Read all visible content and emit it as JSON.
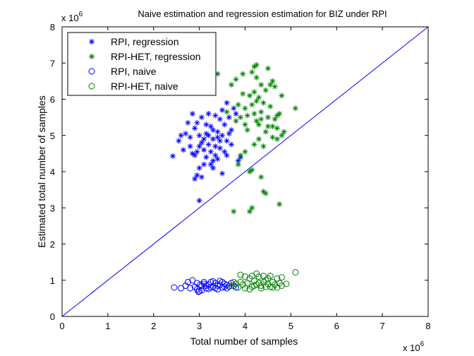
{
  "chart_data": {
    "type": "scatter",
    "title": "Naive estimation and regression estimation for BIZ under RPI",
    "xlabel": "Total number of samples",
    "ylabel": "Estimated total number of samples",
    "x_exponent_base": "x 10",
    "x_exponent_power": "6",
    "y_exponent_base": "x 10",
    "y_exponent_power": "6",
    "xlim": [
      0,
      8
    ],
    "ylim": [
      0,
      8
    ],
    "xticks": [
      "0",
      "1",
      "2",
      "3",
      "4",
      "5",
      "6",
      "7",
      "8"
    ],
    "yticks": [
      "0",
      "1",
      "2",
      "3",
      "4",
      "5",
      "6",
      "7",
      "8"
    ],
    "legend_position": "top-left",
    "reference_line": {
      "from": [
        0,
        0
      ],
      "to": [
        8,
        8
      ],
      "color": "#0000ff"
    },
    "series": [
      {
        "name": "RPI, regression",
        "marker": "asterisk",
        "color": "#0000ff",
        "points": [
          [
            2.42,
            4.43
          ],
          [
            2.55,
            4.85
          ],
          [
            2.6,
            5.0
          ],
          [
            2.7,
            5.05
          ],
          [
            2.75,
            5.35
          ],
          [
            2.8,
            4.95
          ],
          [
            2.85,
            5.6
          ],
          [
            2.9,
            5.2
          ],
          [
            2.95,
            4.55
          ],
          [
            3.0,
            5.0
          ],
          [
            3.05,
            4.8
          ],
          [
            3.1,
            4.6
          ],
          [
            3.15,
            5.05
          ],
          [
            3.2,
            4.75
          ],
          [
            3.25,
            5.25
          ],
          [
            3.3,
            4.9
          ],
          [
            3.35,
            4.45
          ],
          [
            3.4,
            5.1
          ],
          [
            3.45,
            4.65
          ],
          [
            3.5,
            5.0
          ],
          [
            3.55,
            5.3
          ],
          [
            3.6,
            4.85
          ],
          [
            3.65,
            5.5
          ],
          [
            3.7,
            5.15
          ],
          [
            3.75,
            5.75
          ],
          [
            3.8,
            5.6
          ],
          [
            3.85,
            4.3
          ],
          [
            3.6,
            5.9
          ],
          [
            3.2,
            5.6
          ],
          [
            3.3,
            4.3
          ],
          [
            3.1,
            4.2
          ],
          [
            3.0,
            4.1
          ],
          [
            2.95,
            3.9
          ],
          [
            2.9,
            3.8
          ],
          [
            3.05,
            3.85
          ],
          [
            3.0,
            3.2
          ],
          [
            3.5,
            3.95
          ],
          [
            3.3,
            4.1
          ],
          [
            3.4,
            4.35
          ],
          [
            3.15,
            4.4
          ],
          [
            3.25,
            4.55
          ],
          [
            2.85,
            4.5
          ],
          [
            2.8,
            4.7
          ],
          [
            3.45,
            5.45
          ],
          [
            3.5,
            5.7
          ],
          [
            3.35,
            5.55
          ],
          [
            3.55,
            4.55
          ],
          [
            3.6,
            4.45
          ],
          [
            3.65,
            5.05
          ],
          [
            3.4,
            4.95
          ],
          [
            3.3,
            5.15
          ],
          [
            3.2,
            5.0
          ],
          [
            3.1,
            4.9
          ],
          [
            3.0,
            4.7
          ],
          [
            2.95,
            5.35
          ],
          [
            2.9,
            4.45
          ],
          [
            3.35,
            4.7
          ],
          [
            3.45,
            4.85
          ],
          [
            3.25,
            4.2
          ],
          [
            3.15,
            5.3
          ],
          [
            3.7,
            4.75
          ],
          [
            3.05,
            5.5
          ],
          [
            2.65,
            4.6
          ],
          [
            3.9,
            4.4
          ]
        ]
      },
      {
        "name": "RPI-HET, regression",
        "marker": "asterisk",
        "color": "#008000",
        "points": [
          [
            3.75,
            2.9
          ],
          [
            4.1,
            2.9
          ],
          [
            4.15,
            3.0
          ],
          [
            4.75,
            3.1
          ],
          [
            4.4,
            3.45
          ],
          [
            4.45,
            3.4
          ],
          [
            4.35,
            3.85
          ],
          [
            4.1,
            4.0
          ],
          [
            4.15,
            4.05
          ],
          [
            3.85,
            4.2
          ],
          [
            3.9,
            4.45
          ],
          [
            4.0,
            4.55
          ],
          [
            4.2,
            4.75
          ],
          [
            4.4,
            4.7
          ],
          [
            4.3,
            4.9
          ],
          [
            4.6,
            4.95
          ],
          [
            4.8,
            5.0
          ],
          [
            4.85,
            5.1
          ],
          [
            4.7,
            5.2
          ],
          [
            4.5,
            5.25
          ],
          [
            4.3,
            5.3
          ],
          [
            4.0,
            5.3
          ],
          [
            3.8,
            5.4
          ],
          [
            3.9,
            5.5
          ],
          [
            4.05,
            5.55
          ],
          [
            4.2,
            5.6
          ],
          [
            4.35,
            5.65
          ],
          [
            4.5,
            5.5
          ],
          [
            4.7,
            5.55
          ],
          [
            4.75,
            5.6
          ],
          [
            4.65,
            5.45
          ],
          [
            5.1,
            5.75
          ],
          [
            4.0,
            5.75
          ],
          [
            4.15,
            5.85
          ],
          [
            4.25,
            5.95
          ],
          [
            4.4,
            5.9
          ],
          [
            4.55,
            5.8
          ],
          [
            4.3,
            6.05
          ],
          [
            4.1,
            6.1
          ],
          [
            3.95,
            6.15
          ],
          [
            4.2,
            6.2
          ],
          [
            4.45,
            6.25
          ],
          [
            4.35,
            6.4
          ],
          [
            4.55,
            6.4
          ],
          [
            4.6,
            6.5
          ],
          [
            4.25,
            6.6
          ],
          [
            4.15,
            6.75
          ],
          [
            4.2,
            6.9
          ],
          [
            4.25,
            6.95
          ],
          [
            3.7,
            6.4
          ],
          [
            3.8,
            6.55
          ],
          [
            3.95,
            6.7
          ],
          [
            4.5,
            6.85
          ],
          [
            4.65,
            6.35
          ],
          [
            4.8,
            6.1
          ],
          [
            4.05,
            5.15
          ],
          [
            4.25,
            5.4
          ],
          [
            4.45,
            5.1
          ],
          [
            3.6,
            5.65
          ],
          [
            3.85,
            5.85
          ],
          [
            4.6,
            5.25
          ],
          [
            4.7,
            4.9
          ],
          [
            3.4,
            6.7
          ],
          [
            4.35,
            5.45
          ]
        ]
      },
      {
        "name": "RPI, naive",
        "marker": "circle",
        "color": "#0000ff",
        "points": [
          [
            2.45,
            0.8
          ],
          [
            2.6,
            0.78
          ],
          [
            2.7,
            0.85
          ],
          [
            2.75,
            0.95
          ],
          [
            2.8,
            0.78
          ],
          [
            2.85,
            1.0
          ],
          [
            2.9,
            0.82
          ],
          [
            2.95,
            0.75
          ],
          [
            3.0,
            0.7
          ],
          [
            3.05,
            0.85
          ],
          [
            3.1,
            0.9
          ],
          [
            3.15,
            0.78
          ],
          [
            3.2,
            0.88
          ],
          [
            3.25,
            0.95
          ],
          [
            3.3,
            0.82
          ],
          [
            3.35,
            0.92
          ],
          [
            3.4,
            0.85
          ],
          [
            3.45,
            0.98
          ],
          [
            3.5,
            0.8
          ],
          [
            3.55,
            0.9
          ],
          [
            3.6,
            0.87
          ],
          [
            3.65,
            0.83
          ],
          [
            3.7,
            0.92
          ],
          [
            3.75,
            0.85
          ],
          [
            3.8,
            0.8
          ],
          [
            2.95,
            0.92
          ],
          [
            3.05,
            0.72
          ],
          [
            3.15,
            0.85
          ],
          [
            3.25,
            0.8
          ],
          [
            3.35,
            0.78
          ],
          [
            3.45,
            0.88
          ],
          [
            3.55,
            0.82
          ],
          [
            3.3,
            0.97
          ],
          [
            3.1,
            0.95
          ],
          [
            2.98,
            0.68
          ],
          [
            3.4,
            0.75
          ],
          [
            3.5,
            0.95
          ],
          [
            3.2,
            0.76
          ],
          [
            3.6,
            0.78
          ],
          [
            3.02,
            0.88
          ]
        ]
      },
      {
        "name": "RPI-HET, naive",
        "marker": "circle",
        "color": "#008000",
        "points": [
          [
            3.7,
            0.85
          ],
          [
            3.8,
            0.9
          ],
          [
            3.85,
            0.8
          ],
          [
            3.9,
            0.95
          ],
          [
            3.95,
            0.88
          ],
          [
            4.0,
            0.78
          ],
          [
            4.05,
            0.92
          ],
          [
            4.1,
            1.05
          ],
          [
            4.15,
            0.82
          ],
          [
            4.2,
            0.98
          ],
          [
            4.25,
            0.88
          ],
          [
            4.3,
            1.1
          ],
          [
            4.35,
            0.85
          ],
          [
            4.4,
            0.95
          ],
          [
            4.45,
            1.0
          ],
          [
            4.5,
            0.9
          ],
          [
            4.55,
            0.82
          ],
          [
            4.6,
            0.95
          ],
          [
            4.65,
            0.88
          ],
          [
            4.7,
            1.05
          ],
          [
            4.75,
            0.92
          ],
          [
            4.8,
            0.85
          ],
          [
            4.9,
            0.9
          ],
          [
            5.1,
            1.22
          ],
          [
            4.0,
            1.1
          ],
          [
            4.1,
            0.75
          ],
          [
            4.2,
            0.85
          ],
          [
            4.3,
            0.92
          ],
          [
            4.4,
            1.12
          ],
          [
            4.5,
            1.05
          ],
          [
            4.6,
            0.8
          ],
          [
            4.8,
            1.08
          ],
          [
            3.9,
            1.15
          ],
          [
            4.25,
            1.18
          ],
          [
            4.35,
            0.78
          ],
          [
            4.55,
            1.12
          ],
          [
            4.15,
            1.12
          ],
          [
            3.75,
            0.95
          ],
          [
            4.45,
            0.82
          ],
          [
            4.7,
            0.8
          ]
        ]
      }
    ]
  }
}
